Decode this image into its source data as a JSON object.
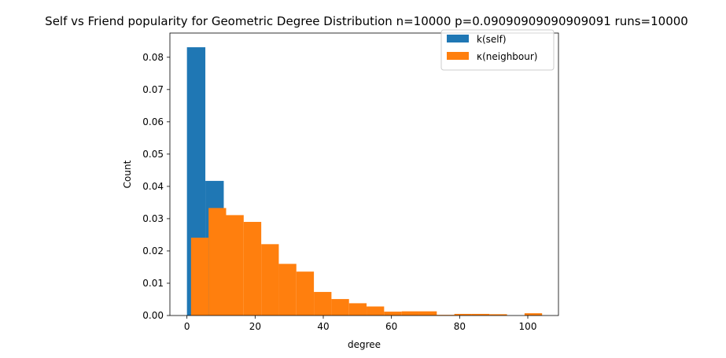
{
  "chart_data": {
    "type": "bar",
    "title": "Self vs Friend popularity for Geometric Degree Distribution n=10000 p=0.09090909090909091 runs=10000",
    "xlabel": "degree",
    "ylabel": "Count",
    "xlim": [
      -5,
      109
    ],
    "ylim": [
      0,
      0.0875
    ],
    "xticks": [
      0,
      20,
      40,
      60,
      80,
      100
    ],
    "yticks": [
      0.0,
      0.01,
      0.02,
      0.03,
      0.04,
      0.05,
      0.06,
      0.07,
      0.08
    ],
    "ytick_labels": [
      "0.00",
      "0.01",
      "0.02",
      "0.03",
      "0.04",
      "0.05",
      "0.06",
      "0.07",
      "0.08"
    ],
    "grid": false,
    "legend_position": "top-right",
    "series": [
      {
        "name": "k(self)",
        "color": "#1f77b4",
        "bins": [
          {
            "x0": 0,
            "x1": 5.4,
            "value": 0.0831
          },
          {
            "x0": 5.4,
            "x1": 10.8,
            "value": 0.0417
          }
        ]
      },
      {
        "name": "κ(neighbour)",
        "color": "#ff7f0e",
        "bins": [
          {
            "x0": 1.2,
            "x1": 6.35,
            "value": 0.0241
          },
          {
            "x0": 6.35,
            "x1": 11.5,
            "value": 0.0333
          },
          {
            "x0": 11.5,
            "x1": 16.65,
            "value": 0.0311
          },
          {
            "x0": 16.65,
            "x1": 21.8,
            "value": 0.029
          },
          {
            "x0": 21.8,
            "x1": 26.95,
            "value": 0.0221
          },
          {
            "x0": 26.95,
            "x1": 32.1,
            "value": 0.016
          },
          {
            "x0": 32.1,
            "x1": 37.25,
            "value": 0.0136
          },
          {
            "x0": 37.25,
            "x1": 42.4,
            "value": 0.0073
          },
          {
            "x0": 42.4,
            "x1": 47.55,
            "value": 0.0051
          },
          {
            "x0": 47.55,
            "x1": 52.7,
            "value": 0.0038
          },
          {
            "x0": 52.7,
            "x1": 57.85,
            "value": 0.0028
          },
          {
            "x0": 57.85,
            "x1": 63.0,
            "value": 0.0012
          },
          {
            "x0": 63.0,
            "x1": 68.15,
            "value": 0.0013
          },
          {
            "x0": 68.15,
            "x1": 73.3,
            "value": 0.0013
          },
          {
            "x0": 73.3,
            "x1": 78.45,
            "value": 0.0002
          },
          {
            "x0": 78.45,
            "x1": 83.6,
            "value": 0.0005
          },
          {
            "x0": 83.6,
            "x1": 88.75,
            "value": 0.0005
          },
          {
            "x0": 88.75,
            "x1": 93.9,
            "value": 0.0004
          },
          {
            "x0": 93.9,
            "x1": 99.05,
            "value": 0.0
          },
          {
            "x0": 99.05,
            "x1": 104.2,
            "value": 0.0007
          }
        ]
      }
    ]
  }
}
